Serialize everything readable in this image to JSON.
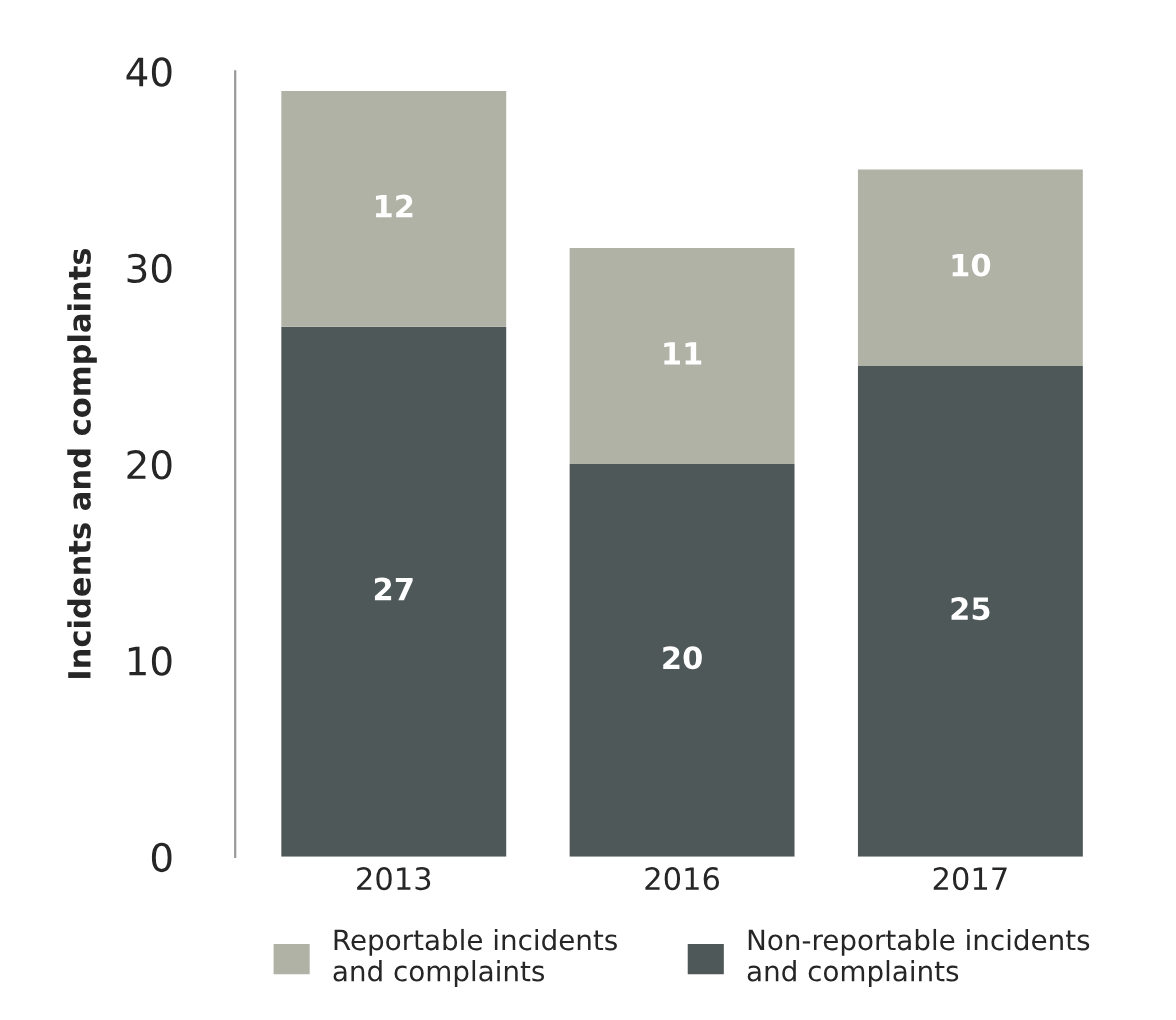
{
  "chart_data": {
    "type": "bar",
    "stacked": true,
    "ylabel": "Incidents and complaints",
    "categories": [
      "2013",
      "2016",
      "2017"
    ],
    "series": [
      {
        "name": "Non-reportable incidents\nand complaints",
        "color": "#4f5859",
        "values": [
          27,
          20,
          25
        ]
      },
      {
        "name": "Reportable incidents\nand complaints",
        "color": "#b1b2a6",
        "values": [
          12,
          11,
          10
        ]
      }
    ],
    "ylim": [
      0,
      40
    ],
    "yticks": [
      0,
      10,
      20,
      30,
      40
    ],
    "grid": false,
    "legend": "bottom",
    "data_labels": true
  }
}
